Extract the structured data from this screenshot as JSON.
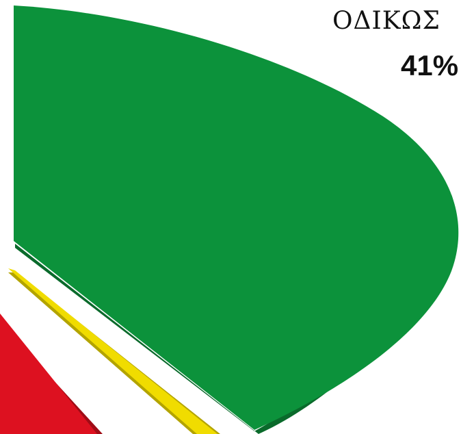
{
  "chart_data": {
    "type": "pie",
    "title": "",
    "slices": [
      {
        "label": "ΟΔΙΚΩΣ",
        "value": 41,
        "value_label": "41%",
        "color": "#0c923b",
        "shadow": "#0a6a2b"
      },
      {
        "label": "",
        "value": null,
        "value_label": "",
        "color": "#f0dc00",
        "shadow": "#b3a400"
      },
      {
        "label": "",
        "value": null,
        "value_label": "",
        "color": "#dd1120",
        "shadow": "#a00c16"
      }
    ],
    "three_d": true,
    "exploded": true
  }
}
